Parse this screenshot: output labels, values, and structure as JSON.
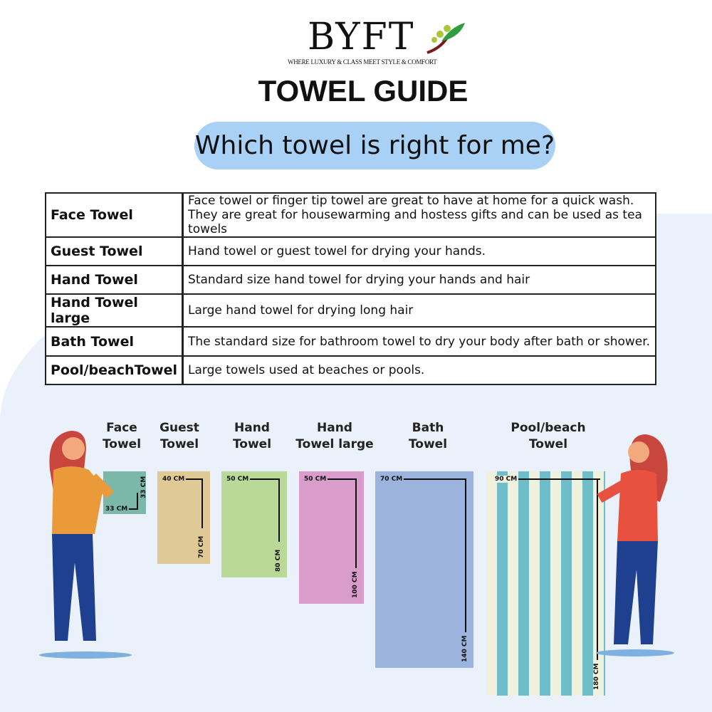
{
  "brand": {
    "name": "BYFT",
    "tagline": "WHERE LUXURY & CLASS MEET STYLE & COMFORT"
  },
  "title": "TOWEL GUIDE",
  "subtitle": "Which towel is right for me?",
  "table": [
    {
      "name": "Face Towel",
      "desc": "Face towel or finger tip towel are great to have at home for a quick wash.",
      "desc2": "They are great for housewarming and hostess gifts and can be used as tea towels"
    },
    {
      "name": "Guest Towel",
      "desc": "Hand towel or guest towel for drying your hands."
    },
    {
      "name": "Hand Towel",
      "desc": "Standard size hand towel for drying your hands and hair"
    },
    {
      "name": "Hand Towel large",
      "desc": "Large hand towel for drying long hair"
    },
    {
      "name": "Bath Towel",
      "desc": "The standard size for bathroom towel to dry your body after bath or shower."
    },
    {
      "name": "Pool/beachTowel",
      "desc": "Large towels used at beaches or pools."
    }
  ],
  "towels": [
    {
      "l1": "Face",
      "l2": "Towel",
      "w": "33 CM",
      "h": "33 CM",
      "color": "#7bb8aa"
    },
    {
      "l1": "Guest",
      "l2": "Towel",
      "w": "40 CM",
      "h": "70 CM",
      "color": "#dfca96"
    },
    {
      "l1": "Hand",
      "l2": "Towel",
      "w": "50 CM",
      "h": "80 CM",
      "color": "#bad998"
    },
    {
      "l1": "Hand",
      "l2": "Towel large",
      "w": "50 CM",
      "h": "100 CM",
      "color": "#da9cca"
    },
    {
      "l1": "Bath",
      "l2": "Towel",
      "w": "70 CM",
      "h": "140 CM",
      "color": "#9bb3dd"
    },
    {
      "l1": "Pool/beach",
      "l2": "Towel",
      "w": "90 CM",
      "h": "180 CM",
      "color": "#eff1dd",
      "stripe": "#6fbdc9"
    }
  ]
}
